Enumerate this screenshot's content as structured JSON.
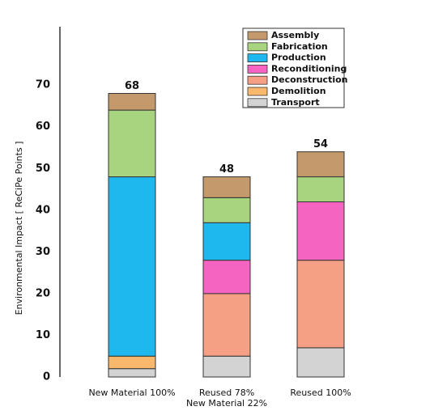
{
  "chart_data": {
    "type": "stacked_bar",
    "ylabel": "Environmental Impact [ ReCiPe Points ]",
    "categories": [
      "New Material 100%",
      "Reused 78%\nNew Material 22%",
      "Reused 100%"
    ],
    "series": [
      {
        "name": "Transport",
        "color": "#d3d3d3",
        "values": [
          2,
          5,
          7
        ]
      },
      {
        "name": "Demolition",
        "color": "#f9b86b",
        "values": [
          3,
          0,
          0
        ]
      },
      {
        "name": "Deconstruction",
        "color": "#f5a084",
        "values": [
          0,
          15,
          21
        ]
      },
      {
        "name": "Reconditioning",
        "color": "#f564c0",
        "values": [
          0,
          8,
          14
        ]
      },
      {
        "name": "Production",
        "color": "#1fb8ee",
        "values": [
          43,
          9,
          0
        ]
      },
      {
        "name": "Fabrication",
        "color": "#a8d37f",
        "values": [
          16,
          6,
          6
        ]
      },
      {
        "name": "Assembly",
        "color": "#c49a6c",
        "values": [
          4,
          5,
          6
        ]
      }
    ],
    "totals": [
      68,
      48,
      54
    ],
    "ylim": [
      0,
      84
    ],
    "yticks": [
      0,
      10,
      20,
      30,
      40,
      50,
      60,
      70
    ]
  }
}
